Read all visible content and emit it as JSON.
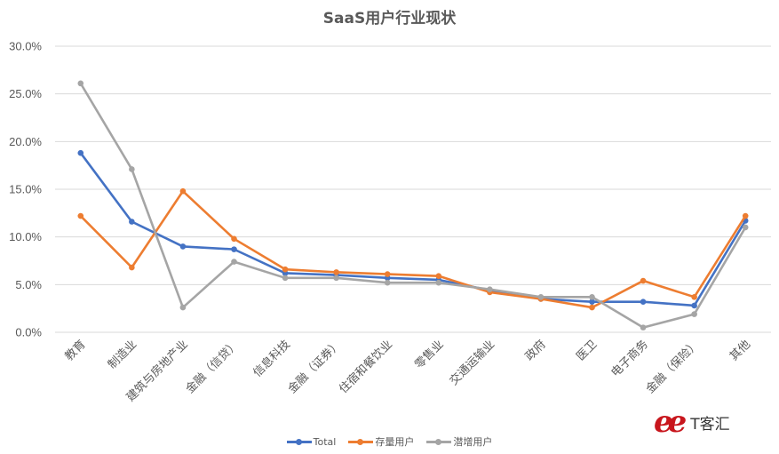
{
  "chart_data": {
    "type": "line",
    "title": "SaaS用户行业现状",
    "xlabel": "",
    "ylabel": "",
    "ylim": [
      0,
      30
    ],
    "yticks": [
      "0.0%",
      "5.0%",
      "10.0%",
      "15.0%",
      "20.0%",
      "25.0%",
      "30.0%"
    ],
    "grid": true,
    "legend_position": "bottom",
    "categories": [
      "教育",
      "制造业",
      "建筑与房地产业",
      "金融（信贷）",
      "信息科技",
      "金融（证券）",
      "住宿和餐饮业",
      "零售业",
      "交通运输业",
      "政府",
      "医卫",
      "电子商务",
      "金融（保险）",
      "其他"
    ],
    "series": [
      {
        "name": "Total",
        "color": "#4472C4",
        "values": [
          18.8,
          11.6,
          9.0,
          8.7,
          6.2,
          6.0,
          5.7,
          5.5,
          4.4,
          3.5,
          3.2,
          3.2,
          2.8,
          11.7
        ]
      },
      {
        "name": "存量用户",
        "color": "#ED7D31",
        "values": [
          12.2,
          6.8,
          14.8,
          9.8,
          6.6,
          6.3,
          6.1,
          5.9,
          4.2,
          3.5,
          2.6,
          5.4,
          3.7,
          12.2
        ]
      },
      {
        "name": "潜增用户",
        "color": "#A5A5A5",
        "values": [
          26.1,
          17.1,
          2.6,
          7.4,
          5.7,
          5.7,
          5.2,
          5.2,
          4.5,
          3.7,
          3.7,
          0.5,
          1.9,
          11.0
        ]
      }
    ]
  },
  "watermark": {
    "text": "T客汇",
    "mark": "ee"
  }
}
